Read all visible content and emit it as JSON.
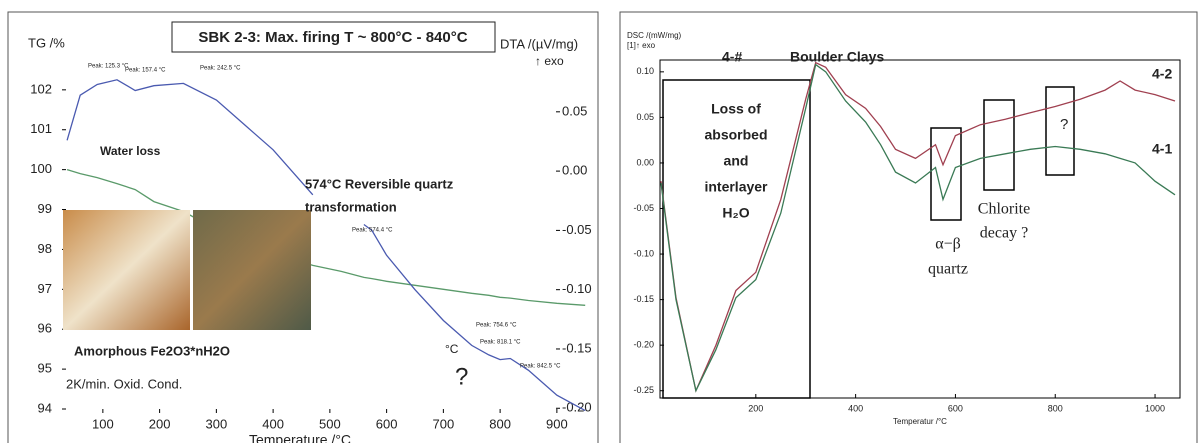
{
  "chart_data": [
    {
      "type": "line",
      "title": "SBK 2-3: Max. firing T ~ 800°C - 840°C",
      "x_label": "Temperature /°C",
      "y_label": "TG /%",
      "y2_label": "DTA /(µV/mg)",
      "y2_note": "↑ exo",
      "x": [
        37,
        60,
        90,
        125,
        157,
        190,
        242,
        300,
        350,
        400,
        470,
        520,
        560,
        574,
        600,
        650,
        700,
        750,
        780,
        800,
        818,
        850,
        900,
        950
      ],
      "series": [
        {
          "color": "#5a9a6a",
          "values": [
            100.0,
            99.9,
            99.8,
            99.65,
            99.5,
            99.2,
            98.95,
            98.5,
            98.2,
            97.9,
            97.6,
            97.45,
            97.3,
            97.27,
            97.2,
            97.1,
            97.0,
            96.9,
            96.85,
            96.8,
            96.78,
            96.72,
            96.65,
            96.6
          ]
        },
        {
          "color": "#4a5ab0",
          "axis": "y2",
          "values": [
            0.026,
            0.064,
            0.073,
            0.077,
            0.068,
            0.072,
            0.074,
            0.06,
            0.039,
            0.018,
            -0.02,
            null,
            -0.045,
            -0.05,
            -0.071,
            -0.1,
            -0.126,
            -0.147,
            -0.155,
            -0.159,
            -0.158,
            -0.168,
            -0.189,
            -0.202
          ]
        }
      ],
      "xlim": [
        28,
        976
      ],
      "xticks": [
        100,
        200,
        300,
        400,
        500,
        600,
        700,
        800,
        900
      ],
      "ylim": [
        93.9,
        103.5
      ],
      "yticks": [
        94,
        95,
        96,
        97,
        98,
        99,
        100,
        101,
        102
      ],
      "y2lim": [
        -0.204,
        0.119
      ],
      "y2ticks": [
        {
          "value": -0.2,
          "label": "-0.20"
        },
        -0.15,
        {
          "value": -0.1,
          "label": "-0.10"
        },
        -0.05,
        {
          "value": 0,
          "label": "0.00"
        },
        0.05
      ],
      "annotations": [
        "Peak: 125.3 °C",
        "Peak: 157.4 °C",
        "Peak: 242.5 °C",
        "Peak: 574.4 °C",
        "Peak: 754.6 °C",
        "Peak: 818.1 °C",
        "Peak: 842.5 °C",
        "Water loss",
        "574°C Reversible quartz",
        "transformation",
        "Amorphous Fe2O3*nH2O",
        "2K/min.  Oxid. Cond.",
        "?",
        "°C"
      ]
    },
    {
      "type": "line",
      "title": "4-#",
      "subtitle": "Boulder Clays",
      "x_label": "Temperatur /°C",
      "y_label": "DSC /(mW/mg)",
      "y_note": "[1]↑ exo",
      "x": [
        10,
        40,
        80,
        120,
        160,
        200,
        250,
        300,
        320,
        340,
        380,
        420,
        450,
        480,
        520,
        560,
        575,
        600,
        650,
        700,
        750,
        800,
        850,
        900,
        930,
        960,
        1000,
        1040
      ],
      "series": [
        {
          "name": "4-2",
          "color": "#a04050",
          "values": [
            -0.02,
            -0.148,
            -0.25,
            -0.2,
            -0.14,
            -0.12,
            -0.04,
            0.07,
            0.11,
            0.105,
            0.075,
            0.06,
            0.04,
            0.015,
            0.005,
            0.02,
            -0.002,
            0.03,
            0.042,
            0.048,
            0.055,
            0.062,
            0.07,
            0.08,
            0.09,
            0.08,
            0.075,
            0.068
          ]
        },
        {
          "name": "4-1",
          "color": "#3a7a55",
          "values": [
            -0.022,
            -0.15,
            -0.25,
            -0.205,
            -0.148,
            -0.128,
            -0.055,
            0.06,
            0.108,
            0.1,
            0.068,
            0.045,
            0.02,
            -0.01,
            -0.022,
            -0.005,
            -0.04,
            -0.005,
            0.005,
            0.01,
            0.015,
            0.018,
            0.015,
            0.01,
            0.005,
            0.0,
            -0.02,
            -0.035
          ]
        }
      ],
      "xlim": [
        8,
        1050
      ],
      "xticks": [
        200,
        400,
        600,
        800,
        1000
      ],
      "ylim": [
        -0.258,
        0.113
      ],
      "yticks": [
        -0.25,
        {
          "value": -0.2,
          "label": "-0.20"
        },
        -0.15,
        {
          "value": -0.1,
          "label": "-0.10"
        },
        -0.05,
        {
          "value": 0,
          "label": "0.00"
        },
        0.05,
        {
          "value": 0.1,
          "label": "0.10"
        }
      ],
      "annotations": [
        "Loss of",
        "absorbed",
        "and",
        "interlayer",
        "H₂O",
        "α−β",
        "quartz",
        "Chlorite",
        "decay ?",
        "?"
      ]
    }
  ]
}
